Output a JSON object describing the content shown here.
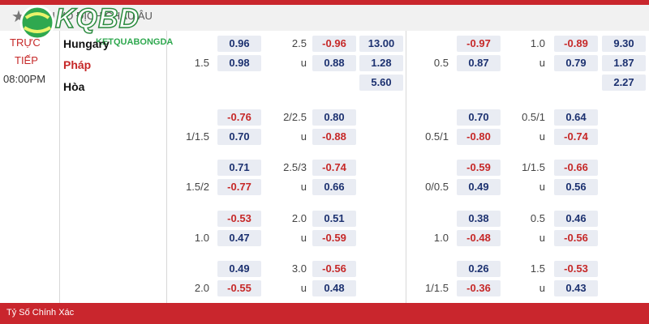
{
  "header": {
    "title": "GIẢI VÔ ĐỊCH CHÂU ÂU",
    "logo": "KQBD",
    "logo_sub": "KETQUABONGDA"
  },
  "match": {
    "status_1": "TRỰC",
    "status_2": "TIẾP",
    "time": "08:00PM",
    "home": "Hungary",
    "away": "Pháp",
    "draw": "Hòa"
  },
  "groups": [
    {
      "rows": [
        [
          null,
          "0.96",
          "2.5",
          "-0.96",
          "13.00",
          null,
          "-0.97",
          "1.0",
          "-0.89",
          "9.30"
        ],
        [
          "1.5",
          "0.98",
          "u",
          "0.88",
          "1.28",
          "0.5",
          "0.87",
          "u",
          "0.79",
          "1.87"
        ],
        [
          null,
          null,
          null,
          null,
          "5.60",
          null,
          null,
          null,
          null,
          "2.27"
        ]
      ]
    },
    {
      "rows": [
        [
          null,
          "-0.76",
          "2/2.5",
          "0.80",
          null,
          null,
          "0.70",
          "0.5/1",
          "0.64",
          null
        ],
        [
          "1/1.5",
          "0.70",
          "u",
          "-0.88",
          null,
          "0.5/1",
          "-0.80",
          "u",
          "-0.74",
          null
        ]
      ]
    },
    {
      "rows": [
        [
          null,
          "0.71",
          "2.5/3",
          "-0.74",
          null,
          null,
          "-0.59",
          "1/1.5",
          "-0.66",
          null
        ],
        [
          "1.5/2",
          "-0.77",
          "u",
          "0.66",
          null,
          "0/0.5",
          "0.49",
          "u",
          "0.56",
          null
        ]
      ]
    },
    {
      "rows": [
        [
          null,
          "-0.53",
          "2.0",
          "0.51",
          null,
          null,
          "0.38",
          "0.5",
          "0.46",
          null
        ],
        [
          "1.0",
          "0.47",
          "u",
          "-0.59",
          null,
          "1.0",
          "-0.48",
          "u",
          "-0.56",
          null
        ]
      ]
    },
    {
      "rows": [
        [
          null,
          "0.49",
          "3.0",
          "-0.56",
          null,
          null,
          "0.26",
          "1.5",
          "-0.53",
          null
        ],
        [
          "2.0",
          "-0.55",
          "u",
          "0.48",
          null,
          "1/1.5",
          "-0.36",
          "u",
          "0.43",
          null
        ]
      ]
    }
  ],
  "footer": {
    "label": "Tỷ Số Chính Xác"
  }
}
